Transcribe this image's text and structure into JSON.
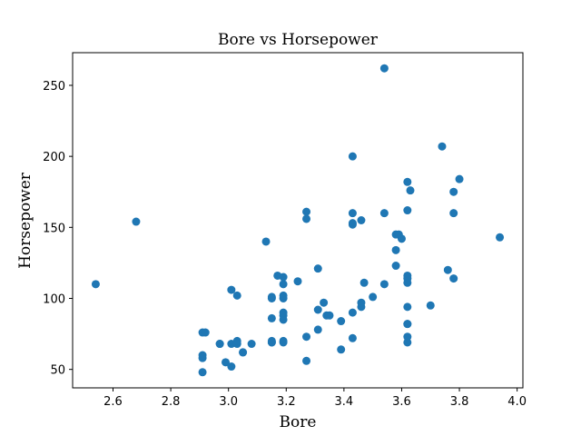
{
  "chart_data": {
    "type": "scatter",
    "title": "Bore vs Horsepower",
    "xlabel": "Bore",
    "ylabel": "Horsepower",
    "xlim": [
      2.46,
      4.02
    ],
    "ylim": [
      37,
      273
    ],
    "xticks": [
      "2.6",
      "2.8",
      "3.0",
      "3.2",
      "3.4",
      "3.6",
      "3.8",
      "4.0"
    ],
    "yticks": [
      "50",
      "100",
      "150",
      "200",
      "250"
    ],
    "grid": false,
    "color": "#1f77b4",
    "points": [
      [
        2.54,
        110
      ],
      [
        2.68,
        154
      ],
      [
        2.91,
        48
      ],
      [
        2.91,
        58
      ],
      [
        2.91,
        60
      ],
      [
        2.91,
        76
      ],
      [
        2.92,
        76
      ],
      [
        2.97,
        68
      ],
      [
        2.97,
        68
      ],
      [
        2.99,
        55
      ],
      [
        3.01,
        52
      ],
      [
        3.01,
        68
      ],
      [
        3.01,
        106
      ],
      [
        3.03,
        68
      ],
      [
        3.03,
        70
      ],
      [
        3.03,
        102
      ],
      [
        3.05,
        62
      ],
      [
        3.05,
        62
      ],
      [
        3.08,
        68
      ],
      [
        3.13,
        140
      ],
      [
        3.15,
        69
      ],
      [
        3.15,
        69
      ],
      [
        3.15,
        70
      ],
      [
        3.15,
        86
      ],
      [
        3.15,
        100
      ],
      [
        3.15,
        101
      ],
      [
        3.17,
        116
      ],
      [
        3.19,
        69
      ],
      [
        3.19,
        70
      ],
      [
        3.19,
        85
      ],
      [
        3.19,
        88
      ],
      [
        3.19,
        90
      ],
      [
        3.19,
        100
      ],
      [
        3.19,
        102
      ],
      [
        3.19,
        110
      ],
      [
        3.19,
        115
      ],
      [
        3.24,
        112
      ],
      [
        3.27,
        56
      ],
      [
        3.27,
        73
      ],
      [
        3.27,
        156
      ],
      [
        3.27,
        161
      ],
      [
        3.31,
        78
      ],
      [
        3.31,
        92
      ],
      [
        3.31,
        121
      ],
      [
        3.33,
        97
      ],
      [
        3.34,
        88
      ],
      [
        3.35,
        88
      ],
      [
        3.39,
        64
      ],
      [
        3.39,
        84
      ],
      [
        3.43,
        72
      ],
      [
        3.43,
        90
      ],
      [
        3.43,
        152
      ],
      [
        3.43,
        153
      ],
      [
        3.43,
        160
      ],
      [
        3.43,
        200
      ],
      [
        3.46,
        94
      ],
      [
        3.46,
        97
      ],
      [
        3.46,
        155
      ],
      [
        3.47,
        111
      ],
      [
        3.5,
        101
      ],
      [
        3.54,
        110
      ],
      [
        3.54,
        160
      ],
      [
        3.54,
        262
      ],
      [
        3.58,
        123
      ],
      [
        3.58,
        134
      ],
      [
        3.58,
        145
      ],
      [
        3.59,
        145
      ],
      [
        3.6,
        142
      ],
      [
        3.62,
        69
      ],
      [
        3.62,
        73
      ],
      [
        3.62,
        82
      ],
      [
        3.62,
        82
      ],
      [
        3.62,
        94
      ],
      [
        3.62,
        111
      ],
      [
        3.62,
        114
      ],
      [
        3.62,
        116
      ],
      [
        3.62,
        162
      ],
      [
        3.62,
        182
      ],
      [
        3.63,
        176
      ],
      [
        3.7,
        95
      ],
      [
        3.74,
        207
      ],
      [
        3.76,
        120
      ],
      [
        3.78,
        114
      ],
      [
        3.78,
        160
      ],
      [
        3.78,
        175
      ],
      [
        3.8,
        184
      ],
      [
        3.94,
        143
      ]
    ]
  }
}
